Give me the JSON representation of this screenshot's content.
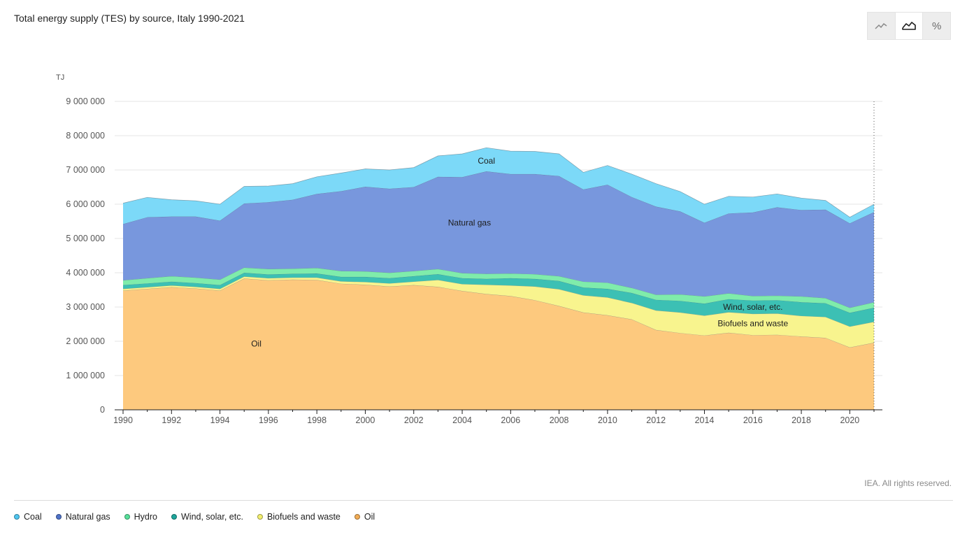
{
  "title": "Total energy supply (TES) by source, Italy 1990-2021",
  "toolbar": {
    "line_icon": "line-chart-icon",
    "area_icon": "area-chart-icon",
    "percent_label": "%"
  },
  "credit": "IEA. All rights reserved.",
  "colors": {
    "Coal": "#7cd9f8",
    "Natural gas": "#7897dd",
    "Hydro": "#7fecab",
    "Wind, solar, etc.": "#3cc0b4",
    "Biofuels and waste": "#f8f48e",
    "Oil": "#fdc97e"
  },
  "legend": [
    {
      "name": "Coal",
      "color": "#4fc6f0"
    },
    {
      "name": "Natural gas",
      "color": "#4f73c9"
    },
    {
      "name": "Hydro",
      "color": "#57e09a"
    },
    {
      "name": "Wind, solar, etc.",
      "color": "#1ea69c"
    },
    {
      "name": "Biofuels and waste",
      "color": "#f3ef6e"
    },
    {
      "name": "Oil",
      "color": "#f2ac55"
    }
  ],
  "chart_data": {
    "type": "area",
    "stacked": true,
    "title": "Total energy supply (TES) by source, Italy 1990-2021",
    "ylabel": "TJ",
    "xlabel": "",
    "ylim": [
      0,
      9000000
    ],
    "yticks": [
      0,
      1000000,
      2000000,
      3000000,
      4000000,
      5000000,
      6000000,
      7000000,
      8000000,
      9000000
    ],
    "ytick_labels": [
      "0",
      "1 000 000",
      "2 000 000",
      "3 000 000",
      "4 000 000",
      "5 000 000",
      "6 000 000",
      "7 000 000",
      "8 000 000",
      "9 000 000"
    ],
    "xticks": [
      1990,
      1992,
      1994,
      1996,
      1998,
      2000,
      2002,
      2004,
      2006,
      2008,
      2010,
      2012,
      2014,
      2016,
      2018,
      2020
    ],
    "x": [
      1990,
      1991,
      1992,
      1993,
      1994,
      1995,
      1996,
      1997,
      1998,
      1999,
      2000,
      2001,
      2002,
      2003,
      2004,
      2005,
      2006,
      2007,
      2008,
      2009,
      2010,
      2011,
      2012,
      2013,
      2014,
      2015,
      2016,
      2017,
      2018,
      2019,
      2020,
      2021
    ],
    "series": [
      {
        "name": "Oil",
        "values": [
          3480000,
          3530000,
          3580000,
          3540000,
          3480000,
          3830000,
          3780000,
          3800000,
          3790000,
          3680000,
          3650000,
          3600000,
          3640000,
          3590000,
          3470000,
          3380000,
          3320000,
          3200000,
          3030000,
          2840000,
          2760000,
          2640000,
          2330000,
          2240000,
          2170000,
          2250000,
          2180000,
          2190000,
          2140000,
          2100000,
          1820000,
          1960000
        ]
      },
      {
        "name": "Biofuels and waste",
        "values": [
          50000,
          50000,
          50000,
          50000,
          50000,
          60000,
          60000,
          60000,
          70000,
          70000,
          80000,
          90000,
          100000,
          200000,
          200000,
          270000,
          310000,
          400000,
          490000,
          500000,
          520000,
          480000,
          570000,
          600000,
          580000,
          600000,
          620000,
          620000,
          600000,
          610000,
          610000,
          610000
        ]
      },
      {
        "name": "Wind, solar, etc.",
        "values": [
          110000,
          110000,
          110000,
          110000,
          110000,
          110000,
          110000,
          110000,
          120000,
          130000,
          150000,
          150000,
          160000,
          170000,
          170000,
          170000,
          210000,
          220000,
          240000,
          230000,
          250000,
          290000,
          310000,
          340000,
          350000,
          380000,
          390000,
          390000,
          400000,
          400000,
          400000,
          410000
        ]
      },
      {
        "name": "Hydro",
        "values": [
          140000,
          150000,
          160000,
          160000,
          160000,
          150000,
          160000,
          150000,
          160000,
          170000,
          160000,
          160000,
          150000,
          150000,
          150000,
          150000,
          140000,
          140000,
          140000,
          170000,
          180000,
          150000,
          150000,
          190000,
          210000,
          170000,
          130000,
          130000,
          170000,
          150000,
          150000,
          160000
        ]
      },
      {
        "name": "Natural gas",
        "values": [
          1640000,
          1780000,
          1740000,
          1780000,
          1720000,
          1870000,
          1950000,
          2010000,
          2160000,
          2330000,
          2470000,
          2450000,
          2450000,
          2690000,
          2800000,
          2990000,
          2900000,
          2920000,
          2920000,
          2690000,
          2860000,
          2650000,
          2570000,
          2420000,
          2150000,
          2330000,
          2440000,
          2580000,
          2520000,
          2580000,
          2460000,
          2630000
        ]
      },
      {
        "name": "Coal",
        "values": [
          610000,
          580000,
          490000,
          460000,
          480000,
          500000,
          470000,
          470000,
          500000,
          530000,
          520000,
          550000,
          570000,
          610000,
          680000,
          690000,
          670000,
          660000,
          650000,
          500000,
          560000,
          670000,
          670000,
          580000,
          540000,
          500000,
          450000,
          390000,
          350000,
          270000,
          180000,
          230000
        ]
      }
    ],
    "annotations": [
      {
        "text": "Coal",
        "x": 2005,
        "y": 7180000
      },
      {
        "text": "Natural gas",
        "x": 2004.3,
        "y": 5380000
      },
      {
        "text": "Wind, solar, etc.",
        "x": 2016.0,
        "y": 2920000
      },
      {
        "text": "Biofuels and waste",
        "x": 2016.0,
        "y": 2440000
      },
      {
        "text": "Oil",
        "x": 1995.5,
        "y": 1850000
      }
    ]
  }
}
